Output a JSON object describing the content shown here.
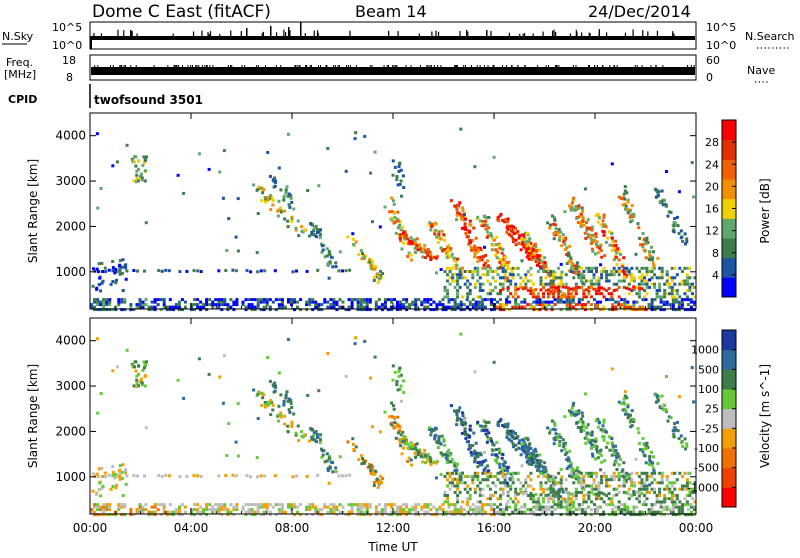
{
  "header": {
    "station": "Dome C East (fitACF)",
    "beam": "Beam 14",
    "date": "24/Dec/2014"
  },
  "strips": {
    "nsky_label": "N.Sky",
    "nsky_ticks": [
      "10^5",
      "10^0"
    ],
    "nsearch_label": "N.Search",
    "nsearch_ticks": [
      "10^5",
      "10^0"
    ],
    "freq_label": "Freq.",
    "freq_unit": "[MHz]",
    "freq_ticks": [
      "18",
      "8"
    ],
    "nave_label": "Nave",
    "nave_ticks": [
      "60",
      "0"
    ],
    "cpid_label": "CPID",
    "cpid_value": "twofsound 3501"
  },
  "colors": {
    "power": [
      "#0000ff",
      "#1d53a3",
      "#3e7c4b",
      "#61a86e",
      "#f0d000",
      "#f09000",
      "#f06000",
      "#e03000",
      "#ff0000"
    ],
    "velocity": [
      "#ff0000",
      "#f04000",
      "#f07000",
      "#f0a000",
      "#bdbdbd",
      "#65c93a",
      "#3e7c4b",
      "#2e6a9c",
      "#1a3aa0"
    ]
  },
  "chart_data": [
    {
      "type": "heatmap",
      "name": "power",
      "ylabel": "Slant Range [km]",
      "xlabel": "",
      "x_ticks": [
        "00:00",
        "04:00",
        "08:00",
        "12:00",
        "16:00",
        "20:00",
        "00:00"
      ],
      "x_range_hours": [
        0,
        24
      ],
      "y_ticks": [
        "1000",
        "2000",
        "3000",
        "4000"
      ],
      "y_range_km": [
        180,
        4500
      ],
      "colorbar_label": "Power [dB]",
      "colorbar_ticks": [
        "4",
        "8",
        "12",
        "16",
        "20",
        "24",
        "28"
      ],
      "colorbar_range": [
        0,
        30
      ]
    },
    {
      "type": "heatmap",
      "name": "velocity",
      "ylabel": "Slant Range [km]",
      "xlabel": "Time UT",
      "x_ticks": [
        "00:00",
        "04:00",
        "08:00",
        "12:00",
        "16:00",
        "20:00",
        "00:00"
      ],
      "x_range_hours": [
        0,
        24
      ],
      "y_ticks": [
        "1000",
        "2000",
        "3000",
        "4000"
      ],
      "y_range_km": [
        180,
        4500
      ],
      "colorbar_label": "Velocity [m s^-1]",
      "colorbar_ticks": [
        "1000",
        "500",
        "100",
        "25",
        "-25",
        "-100",
        "-500",
        "-1000"
      ]
    }
  ]
}
